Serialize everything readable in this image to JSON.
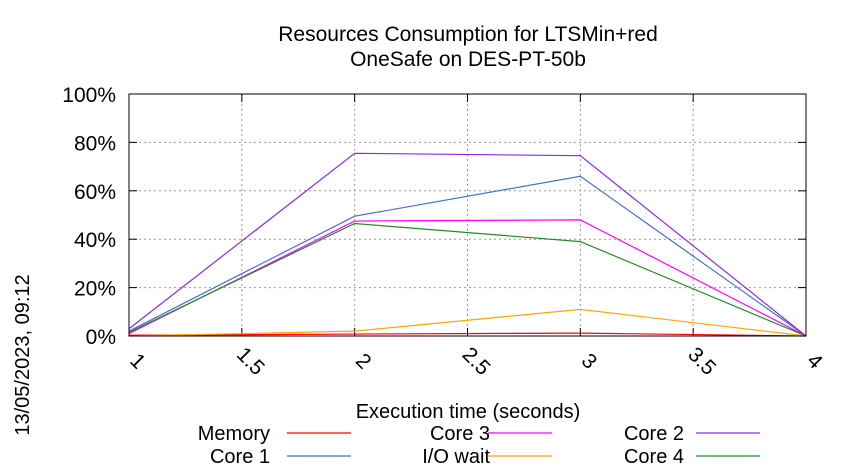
{
  "chart_data": {
    "type": "line",
    "title": "Resources Consumption for LTSMin+red",
    "subtitle": "OneSafe on DES-PT-50b",
    "xlabel": "Execution time (seconds)",
    "ylabel": "",
    "side_label": "13/05/2023, 09:12",
    "xlim": [
      1,
      4
    ],
    "ylim": [
      0,
      100
    ],
    "x_ticks": [
      "1",
      "1.5",
      "2",
      "2.5",
      "3",
      "3.5",
      "4"
    ],
    "y_ticks": [
      "0%",
      "20%",
      "40%",
      "60%",
      "80%",
      "100%"
    ],
    "grid": true,
    "legend_position": "bottom",
    "x": [
      1,
      2,
      3,
      4
    ],
    "series": [
      {
        "name": "Memory",
        "color": "#ff0000",
        "values": [
          0.3,
          0.8,
          1.2,
          0
        ]
      },
      {
        "name": "Core 1",
        "color": "#4472c4",
        "values": [
          2,
          49.5,
          66,
          0
        ]
      },
      {
        "name": "Core 3",
        "color": "#ff00ff",
        "values": [
          1,
          47.5,
          48,
          0
        ]
      },
      {
        "name": "I/O wait",
        "color": "#ffa500",
        "values": [
          0,
          2,
          11,
          0
        ]
      },
      {
        "name": "Core 2",
        "color": "#8a2be2",
        "values": [
          3,
          75.5,
          74.5,
          0
        ]
      },
      {
        "name": "Core 4",
        "color": "#228b22",
        "values": [
          1.5,
          46.5,
          39,
          0
        ]
      }
    ]
  }
}
